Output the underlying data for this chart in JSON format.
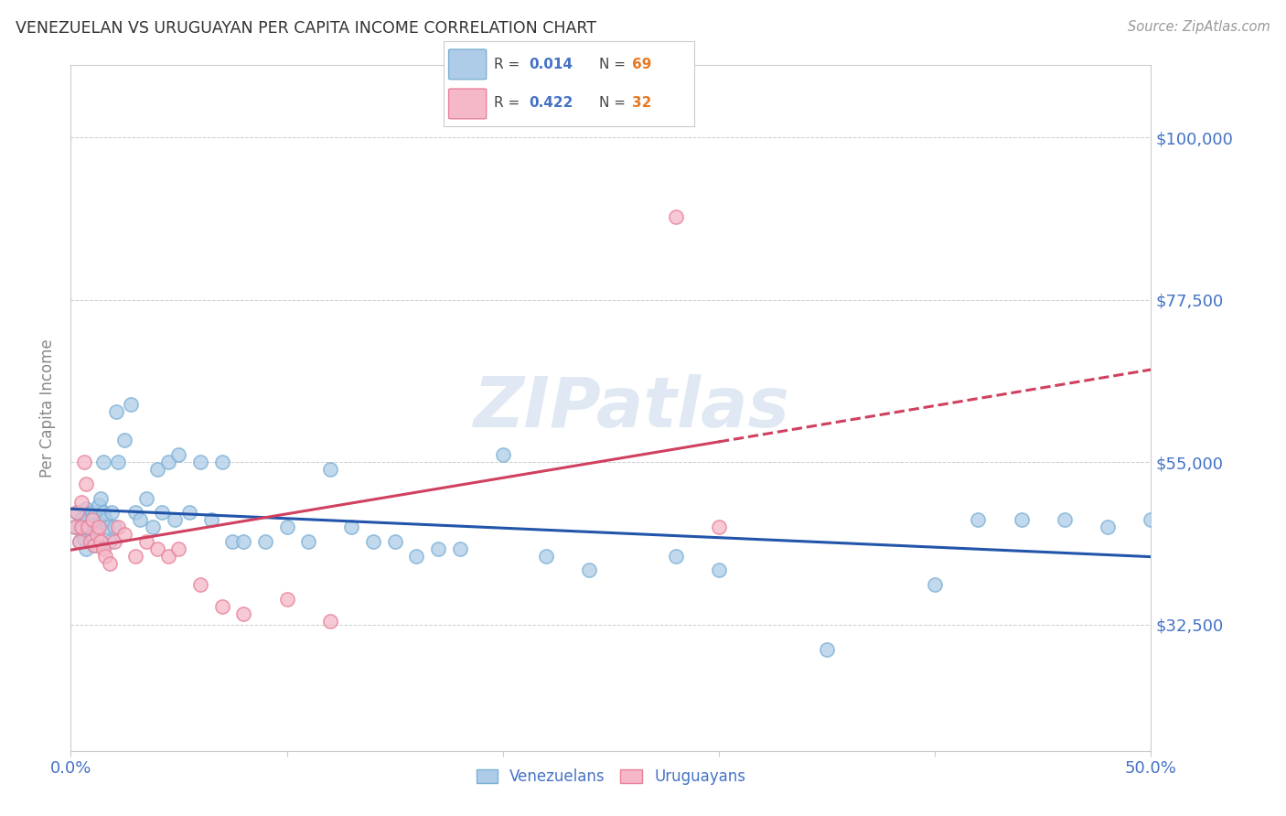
{
  "title": "VENEZUELAN VS URUGUAYAN PER CAPITA INCOME CORRELATION CHART",
  "source": "Source: ZipAtlas.com",
  "ylabel": "Per Capita Income",
  "watermark": "ZIPatlas",
  "xlim": [
    0.0,
    0.5
  ],
  "ylim": [
    15000,
    110000
  ],
  "yticks": [
    32500,
    55000,
    77500,
    100000
  ],
  "ytick_labels": [
    "$32,500",
    "$55,000",
    "$77,500",
    "$100,000"
  ],
  "xticks": [
    0.0,
    0.1,
    0.2,
    0.3,
    0.4,
    0.5
  ],
  "xtick_labels": [
    "0.0%",
    "",
    "",
    "",
    "",
    "50.0%"
  ],
  "blue_scatter_color": "#aecce8",
  "blue_edge_color": "#7ab0d4",
  "pink_scatter_color": "#f4b8c8",
  "pink_edge_color": "#e88098",
  "trend_blue_color": "#2255aa",
  "trend_pink_color": "#d04060",
  "axis_tick_color": "#4472c4",
  "ylabel_color": "#888888",
  "title_color": "#333333",
  "grid_color": "#cccccc",
  "background_color": "#ffffff",
  "legend_r_color": "#4472c4",
  "legend_n_color": "#e87820",
  "venezuelans_x": [
    0.002,
    0.003,
    0.004,
    0.005,
    0.005,
    0.006,
    0.006,
    0.007,
    0.007,
    0.008,
    0.008,
    0.009,
    0.009,
    0.01,
    0.01,
    0.011,
    0.011,
    0.012,
    0.013,
    0.013,
    0.014,
    0.015,
    0.015,
    0.016,
    0.017,
    0.018,
    0.019,
    0.02,
    0.021,
    0.022,
    0.025,
    0.028,
    0.03,
    0.032,
    0.035,
    0.038,
    0.04,
    0.042,
    0.045,
    0.048,
    0.05,
    0.055,
    0.06,
    0.065,
    0.07,
    0.075,
    0.08,
    0.09,
    0.1,
    0.11,
    0.12,
    0.13,
    0.14,
    0.15,
    0.16,
    0.17,
    0.18,
    0.2,
    0.22,
    0.24,
    0.28,
    0.3,
    0.35,
    0.4,
    0.42,
    0.44,
    0.46,
    0.48,
    0.5
  ],
  "venezuelans_y": [
    46000,
    48000,
    44000,
    47000,
    45500,
    46500,
    44500,
    48500,
    43000,
    47000,
    45000,
    44000,
    46000,
    48000,
    45000,
    47500,
    43500,
    46000,
    49000,
    46500,
    50000,
    48000,
    55000,
    47000,
    46000,
    44000,
    48000,
    46000,
    62000,
    55000,
    58000,
    63000,
    48000,
    47000,
    50000,
    46000,
    54000,
    48000,
    55000,
    47000,
    56000,
    48000,
    55000,
    47000,
    55000,
    44000,
    44000,
    44000,
    46000,
    44000,
    54000,
    46000,
    44000,
    44000,
    42000,
    43000,
    43000,
    56000,
    42000,
    40000,
    42000,
    40000,
    29000,
    38000,
    47000,
    47000,
    47000,
    46000,
    47000
  ],
  "uruguayans_x": [
    0.002,
    0.003,
    0.004,
    0.005,
    0.005,
    0.006,
    0.007,
    0.008,
    0.009,
    0.01,
    0.011,
    0.012,
    0.013,
    0.014,
    0.015,
    0.016,
    0.018,
    0.02,
    0.022,
    0.025,
    0.03,
    0.035,
    0.04,
    0.045,
    0.05,
    0.06,
    0.07,
    0.08,
    0.1,
    0.12,
    0.28,
    0.3
  ],
  "uruguayans_y": [
    46000,
    48000,
    44000,
    46000,
    49500,
    55000,
    52000,
    46000,
    44000,
    47000,
    43500,
    45000,
    46000,
    44000,
    43000,
    42000,
    41000,
    44000,
    46000,
    45000,
    42000,
    44000,
    43000,
    42000,
    43000,
    38000,
    35000,
    34000,
    36000,
    33000,
    89000,
    46000
  ]
}
